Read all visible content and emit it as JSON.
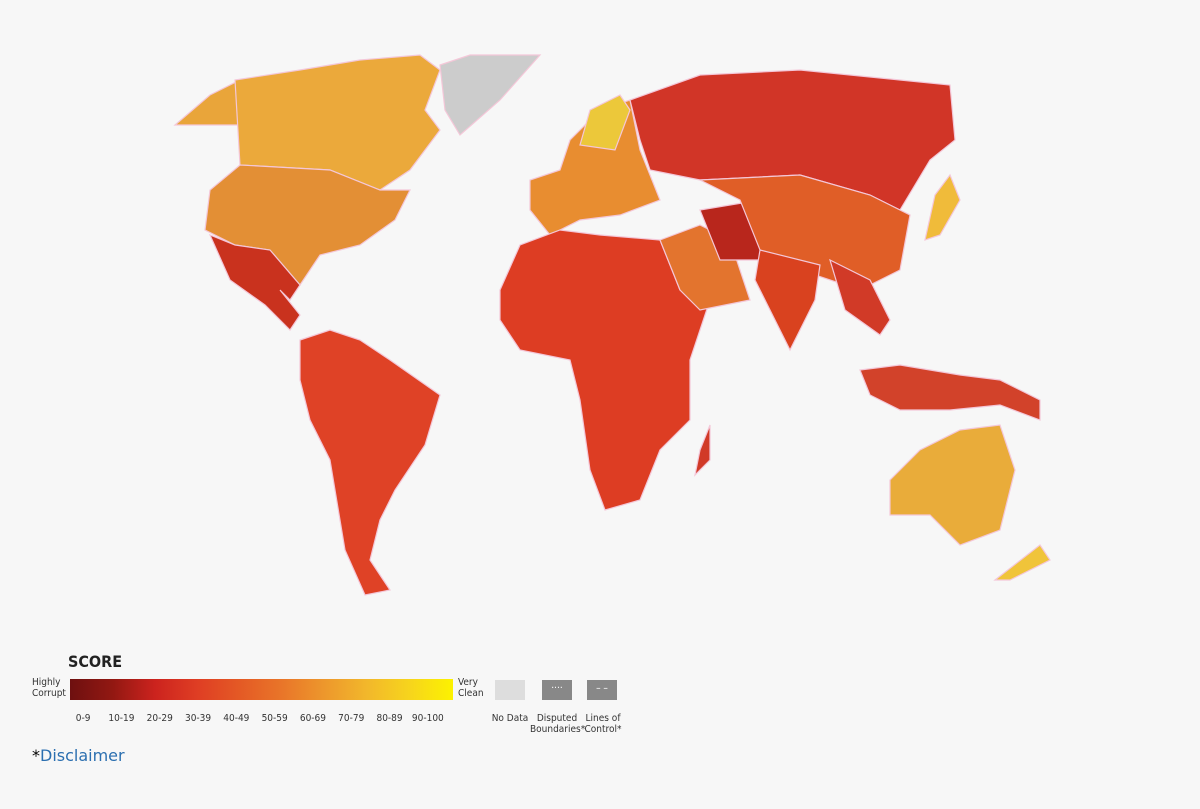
{
  "legend": {
    "title": "SCORE",
    "low_label": "Highly Corrupt",
    "high_label": "Very Clean",
    "ranges": [
      {
        "label": "0-9",
        "color": "#6e1010"
      },
      {
        "label": "10-19",
        "color": "#921812"
      },
      {
        "label": "20-29",
        "color": "#cc231e"
      },
      {
        "label": "30-39",
        "color": "#df3e24"
      },
      {
        "label": "40-49",
        "color": "#e45a25"
      },
      {
        "label": "50-59",
        "color": "#e97629"
      },
      {
        "label": "60-69",
        "color": "#ed982c"
      },
      {
        "label": "70-79",
        "color": "#f2b82b"
      },
      {
        "label": "80-89",
        "color": "#f7d51c"
      },
      {
        "label": "90-100",
        "color": "#fcf200"
      }
    ],
    "no_data": "No Data",
    "disputed": "Disputed Boundaries*",
    "lines_of_control": "Lines of Control*"
  },
  "footer": {
    "asterisk": "*",
    "link": "Disclaimer"
  }
}
